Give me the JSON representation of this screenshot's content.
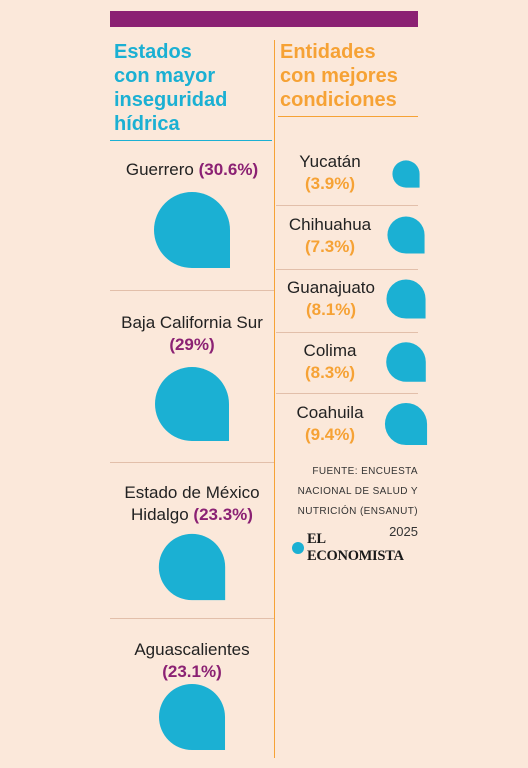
{
  "colors": {
    "background": "#fbe8da",
    "bar": "#8b2173",
    "drop": "#1bb0d3",
    "left_heading": "#1bb0d3",
    "right_heading": "#f6a235",
    "left_value": "#8b2173",
    "right_value": "#f6a235"
  },
  "left": {
    "heading": [
      "Estados",
      "con mayor",
      "inseguridad",
      "hídrica"
    ]
  },
  "right": {
    "heading": [
      "Entidades",
      "con mejores",
      "condiciones"
    ]
  },
  "chart_data": {
    "type": "bar",
    "unit": "%",
    "series": [
      {
        "categories": [
          "Guerrero",
          "Baja California Sur",
          "Estado de México Hidalgo",
          "Aguascalientes"
        ],
        "values": [
          30.6,
          29,
          23.3,
          23.1
        ],
        "labels": [
          "(30.6%)",
          "(29%)",
          "(23.3%)",
          "(23.1%)"
        ]
      },
      {
        "categories": [
          "Yucatán",
          "Chihuahua",
          "Guanajuato",
          "Colima",
          "Coahuila"
        ],
        "values": [
          3.9,
          7.3,
          8.1,
          8.3,
          9.4
        ],
        "labels": [
          "(3.9%)",
          "(7.3%)",
          "(8.1%)",
          "(8.3%)",
          "(9.4%)"
        ]
      }
    ]
  },
  "source": {
    "lines": [
      "FUENTE: ENCUESTA",
      "NACIONAL DE SALUD Y",
      "NUTRICIÓN (ENSANUT)"
    ],
    "year": "2025"
  },
  "brand": "EL ECONOMISTA",
  "icons": {
    "drop": "water-drop-icon",
    "logo": "el-economista-logo-icon"
  }
}
